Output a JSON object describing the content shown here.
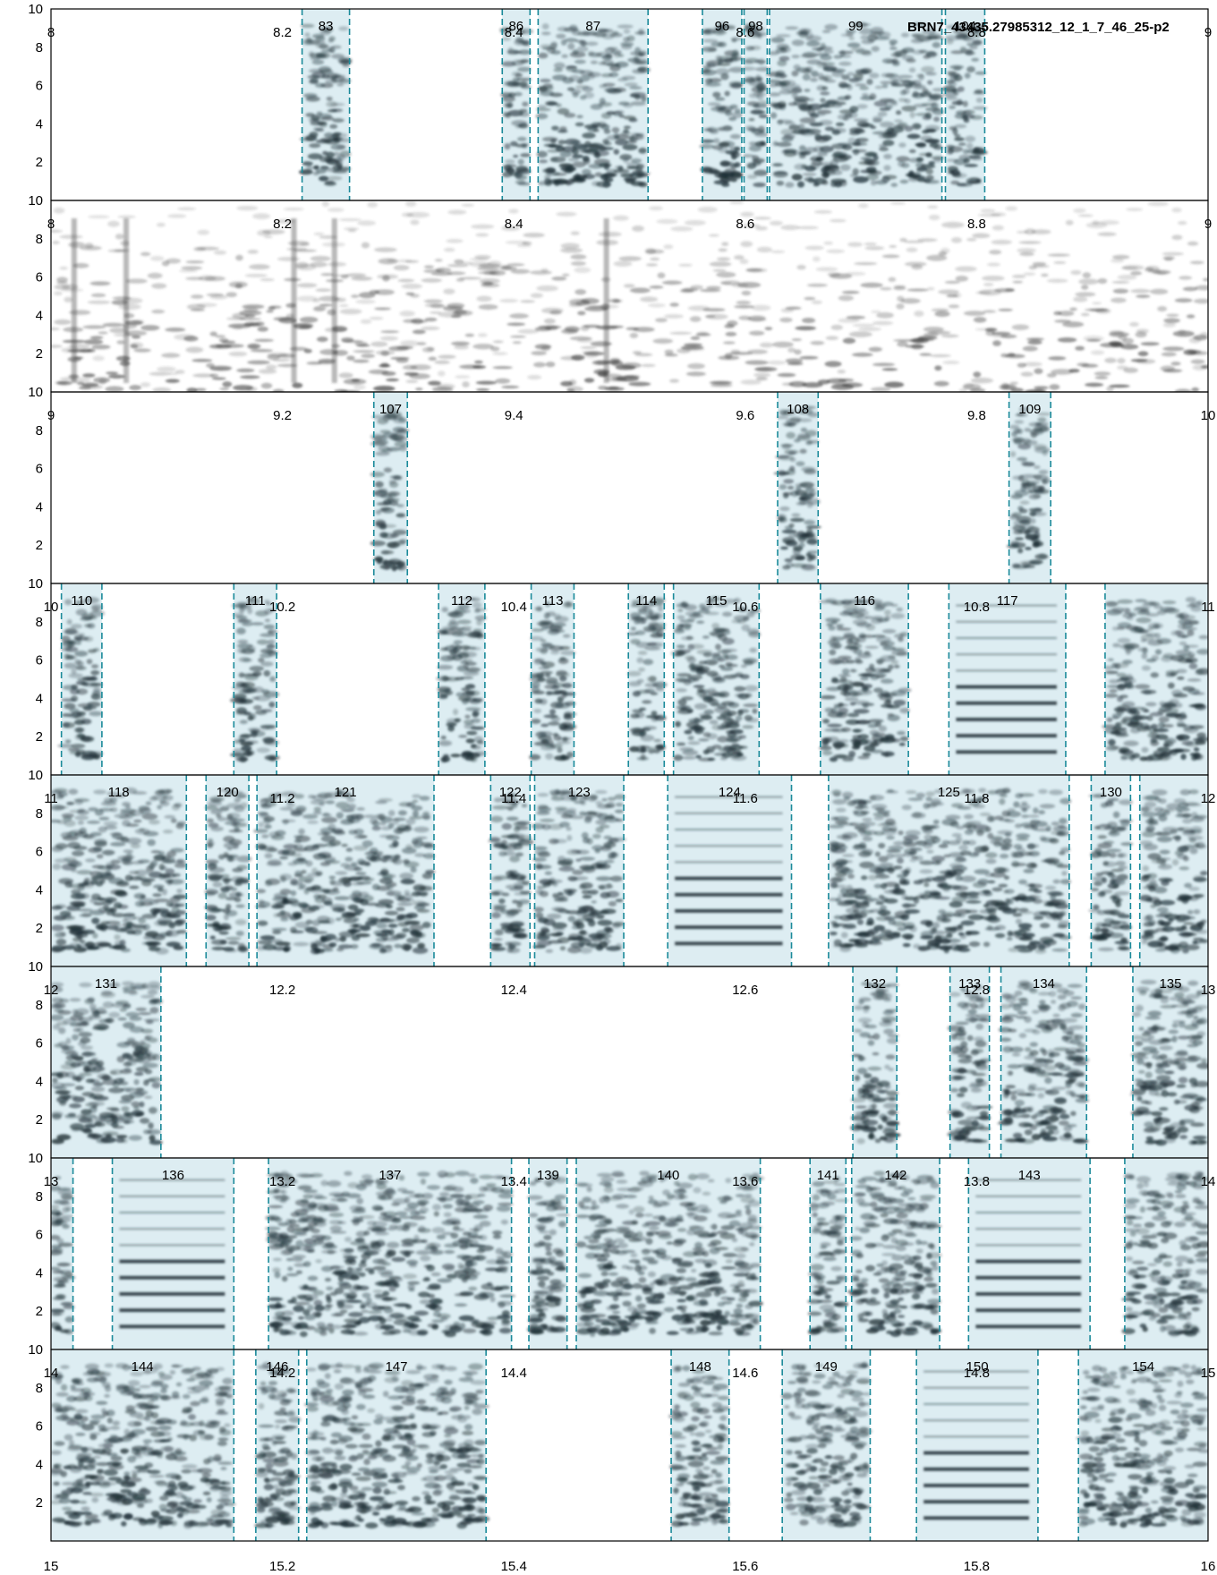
{
  "chart_data": {
    "type": "spectrogram",
    "title": "BRN7_43435.27985312_12_1_7_46_25-p2",
    "ylim": [
      0,
      10
    ],
    "yticks": [
      2,
      4,
      6,
      8,
      10
    ],
    "colors": {
      "segment_fill": "#cfe5ec",
      "segment_edge": "#1b8a9a",
      "ink": "#1e2f36"
    },
    "rows": [
      {
        "xlim": [
          8,
          9
        ],
        "xticks": [
          {
            "v": 8,
            "t": "8"
          },
          {
            "v": 8.2,
            "t": "8.2"
          },
          {
            "v": 8.4,
            "t": "8.4"
          },
          {
            "v": 8.6,
            "t": "8.6"
          },
          {
            "v": 8.8,
            "t": "8.8"
          },
          {
            "v": 9,
            "t": "9"
          }
        ],
        "segments": [
          {
            "label": "83",
            "start": 8.217,
            "end": 8.258
          },
          {
            "label": "86",
            "start": 8.39,
            "end": 8.414
          },
          {
            "label": "87",
            "start": 8.421,
            "end": 8.516
          },
          {
            "label": "96",
            "start": 8.563,
            "end": 8.597
          },
          {
            "label": "98",
            "start": 8.599,
            "end": 8.619
          },
          {
            "label": "99",
            "start": 8.621,
            "end": 8.77
          },
          {
            "label": "104",
            "start": 8.773,
            "end": 8.807
          }
        ]
      },
      {
        "xlim": [
          8,
          9
        ],
        "xticks": [
          {
            "v": 8,
            "t": "8"
          },
          {
            "v": 8.2,
            "t": "8.2"
          },
          {
            "v": 8.4,
            "t": "8.4"
          },
          {
            "v": 8.6,
            "t": "8.6"
          },
          {
            "v": 8.8,
            "t": "8.8"
          },
          {
            "v": 9,
            "t": "9"
          }
        ],
        "segments": []
      },
      {
        "xlim": [
          9,
          10
        ],
        "xticks": [
          {
            "v": 9,
            "t": "9"
          },
          {
            "v": 9.2,
            "t": "9.2"
          },
          {
            "v": 9.4,
            "t": "9.4"
          },
          {
            "v": 9.6,
            "t": "9.6"
          },
          {
            "v": 9.8,
            "t": "9.8"
          },
          {
            "v": 10,
            "t": "10"
          }
        ],
        "segments": [
          {
            "label": "107",
            "start": 9.279,
            "end": 9.308
          },
          {
            "label": "108",
            "start": 9.628,
            "end": 9.663
          },
          {
            "label": "109",
            "start": 9.828,
            "end": 9.864
          }
        ]
      },
      {
        "xlim": [
          10,
          11
        ],
        "xticks": [
          {
            "v": 10,
            "t": "10"
          },
          {
            "v": 10.2,
            "t": "10.2"
          },
          {
            "v": 10.4,
            "t": "10.4"
          },
          {
            "v": 10.6,
            "t": "10.6"
          },
          {
            "v": 10.8,
            "t": "10.8"
          },
          {
            "v": 11,
            "t": "11"
          }
        ],
        "segments": [
          {
            "label": "110",
            "start": 10.009,
            "end": 10.044
          },
          {
            "label": "111",
            "start": 10.158,
            "end": 10.195
          },
          {
            "label": "112",
            "start": 10.335,
            "end": 10.375
          },
          {
            "label": "113",
            "start": 10.415,
            "end": 10.452
          },
          {
            "label": "114",
            "start": 10.499,
            "end": 10.53
          },
          {
            "label": "115",
            "start": 10.538,
            "end": 10.612
          },
          {
            "label": "116",
            "start": 10.665,
            "end": 10.741
          },
          {
            "label": "117",
            "start": 10.776,
            "end": 10.877
          },
          {
            "label": "",
            "start": 10.911,
            "end": 11.0
          }
        ]
      },
      {
        "xlim": [
          11,
          12
        ],
        "xticks": [
          {
            "v": 11,
            "t": "11"
          },
          {
            "v": 11.2,
            "t": "11.2"
          },
          {
            "v": 11.4,
            "t": "11.4"
          },
          {
            "v": 11.6,
            "t": "11.6"
          },
          {
            "v": 11.8,
            "t": "11.8"
          },
          {
            "v": 12,
            "t": "12"
          }
        ],
        "segments": [
          {
            "label": "118",
            "start": 11.0,
            "end": 11.117
          },
          {
            "label": "120",
            "start": 11.134,
            "end": 11.171
          },
          {
            "label": "121",
            "start": 11.178,
            "end": 11.331
          },
          {
            "label": "122",
            "start": 11.38,
            "end": 11.414
          },
          {
            "label": "123",
            "start": 11.418,
            "end": 11.495
          },
          {
            "label": "124",
            "start": 11.533,
            "end": 11.64
          },
          {
            "label": "125",
            "start": 11.672,
            "end": 11.88
          },
          {
            "label": "130",
            "start": 11.899,
            "end": 11.933
          },
          {
            "label": "",
            "start": 11.941,
            "end": 12.0
          }
        ]
      },
      {
        "xlim": [
          12,
          13
        ],
        "xticks": [
          {
            "v": 12,
            "t": "12"
          },
          {
            "v": 12.2,
            "t": "12.2"
          },
          {
            "v": 12.4,
            "t": "12.4"
          },
          {
            "v": 12.6,
            "t": "12.6"
          },
          {
            "v": 12.8,
            "t": "12.8"
          },
          {
            "v": 13,
            "t": "13"
          }
        ],
        "segments": [
          {
            "label": "131",
            "start": 12.0,
            "end": 12.095
          },
          {
            "label": "132",
            "start": 12.693,
            "end": 12.731
          },
          {
            "label": "133",
            "start": 12.777,
            "end": 12.811
          },
          {
            "label": "134",
            "start": 12.821,
            "end": 12.895
          },
          {
            "label": "135",
            "start": 12.935,
            "end": 13.0
          }
        ]
      },
      {
        "xlim": [
          13,
          14
        ],
        "xticks": [
          {
            "v": 13,
            "t": "13"
          },
          {
            "v": 13.2,
            "t": "13.2"
          },
          {
            "v": 13.4,
            "t": "13.4"
          },
          {
            "v": 13.6,
            "t": "13.6"
          },
          {
            "v": 13.8,
            "t": "13.8"
          },
          {
            "v": 14,
            "t": "14"
          }
        ],
        "segments": [
          {
            "label": "",
            "start": 13.0,
            "end": 13.019
          },
          {
            "label": "136",
            "start": 13.053,
            "end": 13.158
          },
          {
            "label": "137",
            "start": 13.188,
            "end": 13.398
          },
          {
            "label": "139",
            "start": 13.413,
            "end": 13.446
          },
          {
            "label": "140",
            "start": 13.454,
            "end": 13.613
          },
          {
            "label": "141",
            "start": 13.656,
            "end": 13.687
          },
          {
            "label": "142",
            "start": 13.692,
            "end": 13.768
          },
          {
            "label": "143",
            "start": 13.793,
            "end": 13.898
          },
          {
            "label": "",
            "start": 13.928,
            "end": 14.0
          }
        ]
      },
      {
        "xlim": [
          14,
          15
        ],
        "xticks": [
          {
            "v": 14,
            "t": "14"
          },
          {
            "v": 14.2,
            "t": "14.2"
          },
          {
            "v": 14.4,
            "t": "14.4"
          },
          {
            "v": 14.6,
            "t": "14.6"
          },
          {
            "v": 14.8,
            "t": "14.8"
          },
          {
            "v": 15,
            "t": "15"
          }
        ],
        "segments": [
          {
            "label": "144",
            "start": 14.0,
            "end": 14.158
          },
          {
            "label": "146",
            "start": 14.177,
            "end": 14.214
          },
          {
            "label": "147",
            "start": 14.221,
            "end": 14.376
          },
          {
            "label": "148",
            "start": 14.536,
            "end": 14.586
          },
          {
            "label": "149",
            "start": 14.632,
            "end": 14.708
          },
          {
            "label": "150",
            "start": 14.748,
            "end": 14.853
          },
          {
            "label": "154",
            "start": 14.888,
            "end": 15.0
          }
        ]
      }
    ],
    "bottom_axis": {
      "xlim": [
        15,
        16
      ],
      "xticks": [
        {
          "v": 15,
          "t": "15"
        },
        {
          "v": 15.2,
          "t": "15.2"
        },
        {
          "v": 15.4,
          "t": "15.4"
        },
        {
          "v": 15.6,
          "t": "15.6"
        },
        {
          "v": 15.8,
          "t": "15.8"
        },
        {
          "v": 16,
          "t": "16"
        }
      ]
    }
  }
}
